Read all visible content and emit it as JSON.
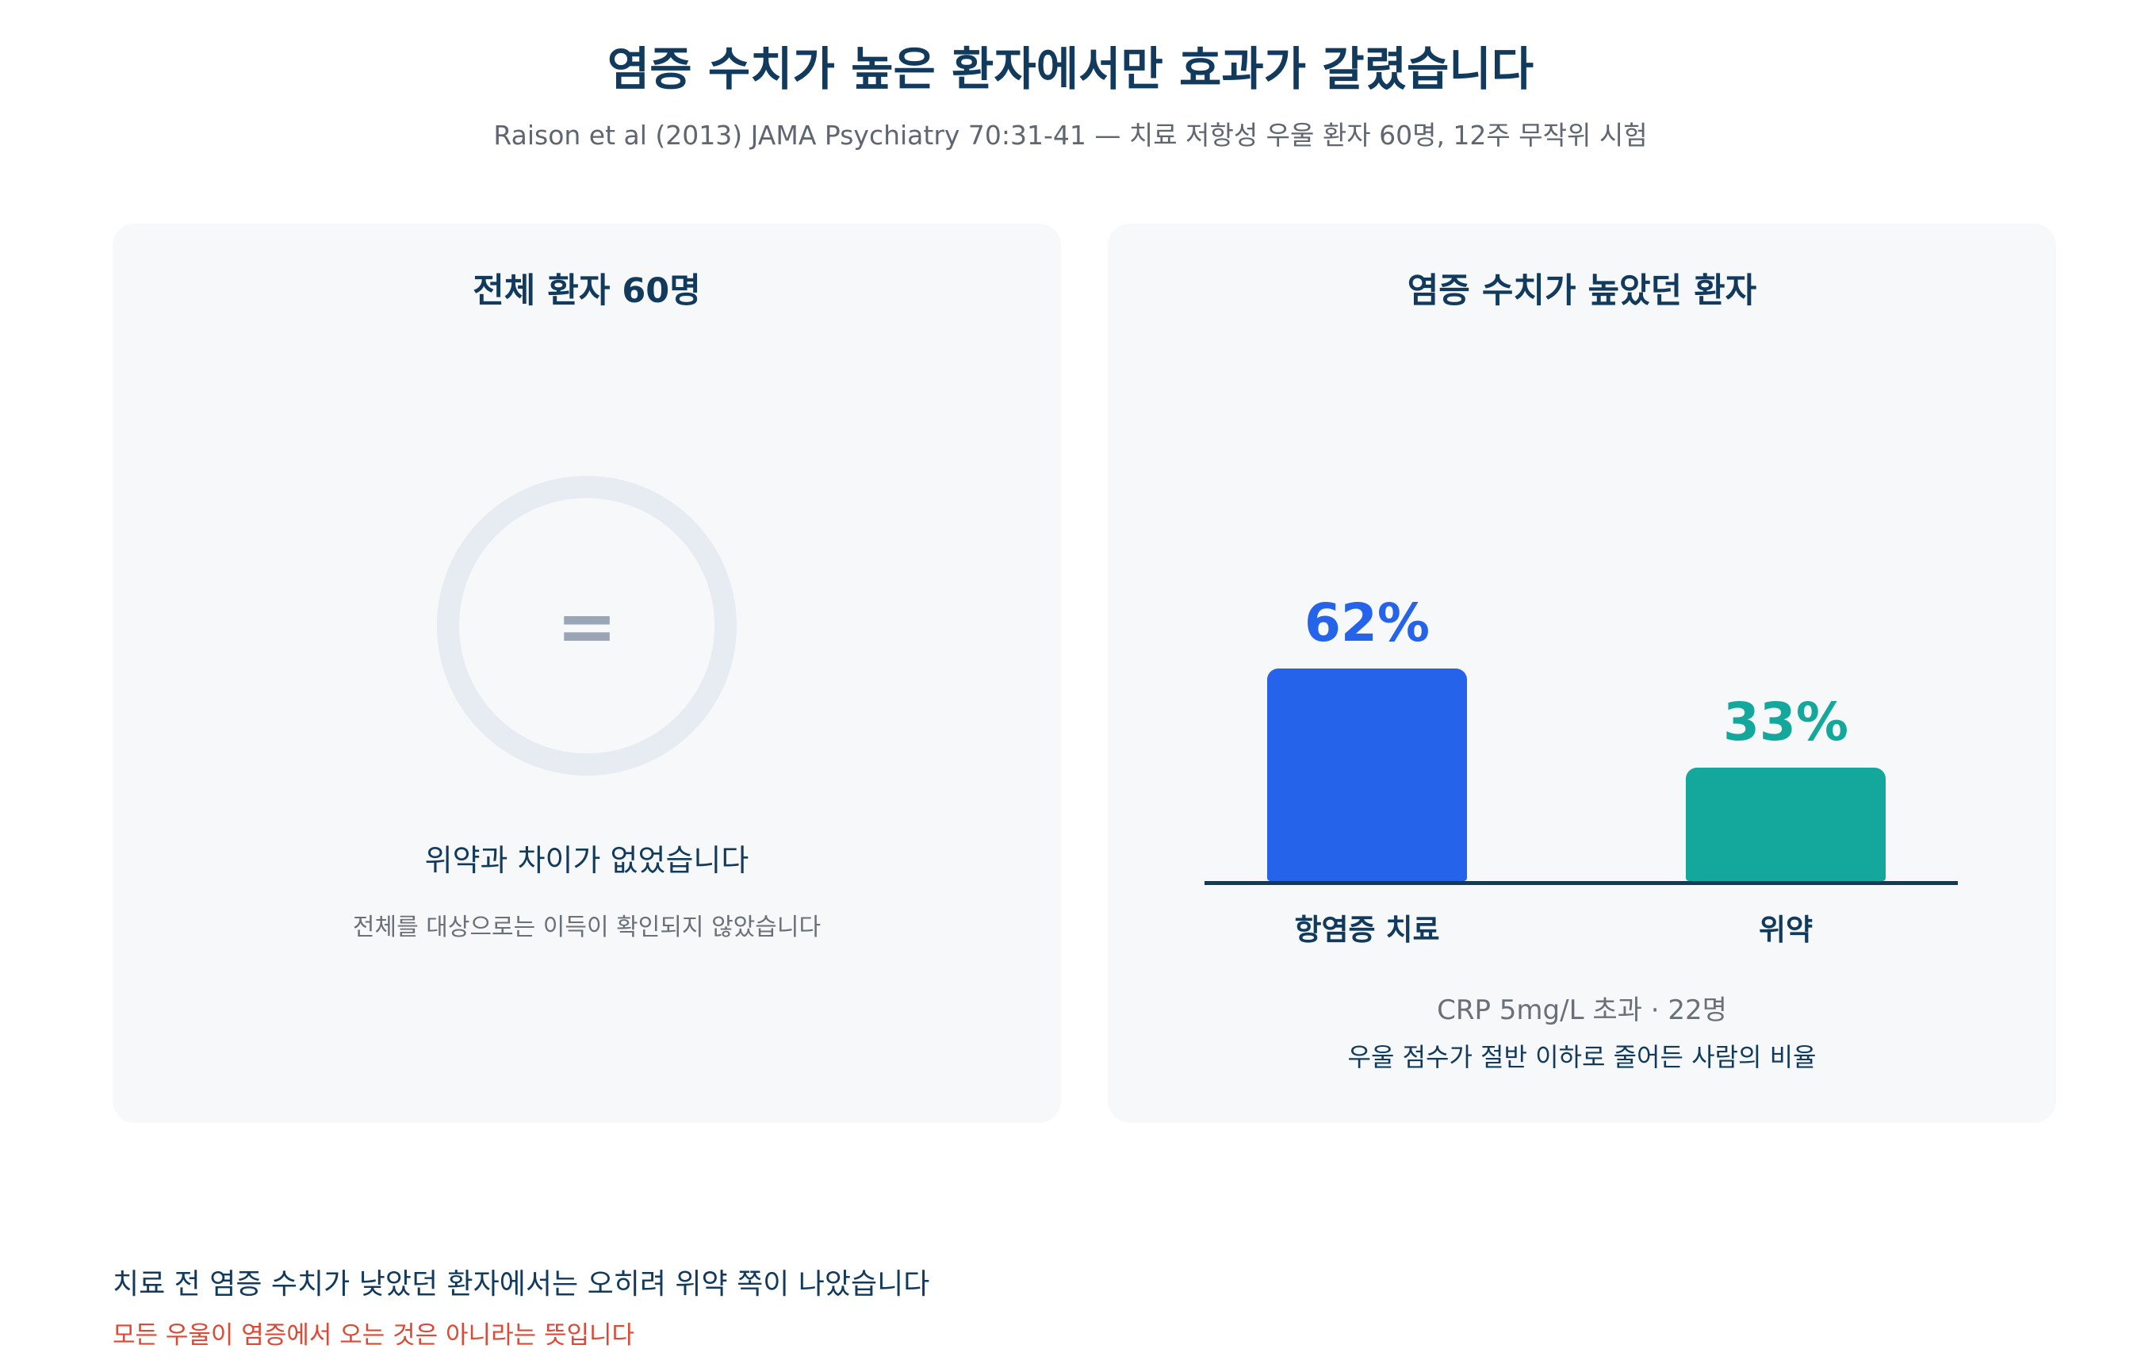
{
  "header": {
    "title": "염증 수치가 높은 환자에서만 효과가 갈렸습니다",
    "subtitle": "Raison et al (2013) JAMA Psychiatry 70:31-41 — 치료 저항성 우울 환자 60명, 12주 무작위 시험"
  },
  "left_panel": {
    "title": "전체 환자 60명",
    "symbol": "=",
    "headline": "위약과 차이가 없었습니다",
    "subtext": "전체를 대상으로는 이득이 확인되지 않았습니다"
  },
  "right_panel": {
    "title": "염증 수치가 높았던 환자",
    "caption": "CRP 5mg/L 초과 · 22명",
    "note": "우울 점수가 절반 이하로 줄어든 사람의 비율"
  },
  "chart_data": {
    "type": "bar",
    "categories": [
      "항염증 치료",
      "위약"
    ],
    "values": [
      62,
      33
    ],
    "value_labels": [
      "62%",
      "33%"
    ],
    "colors": [
      "#2563eb",
      "#14a89c"
    ],
    "ylim": [
      0,
      100
    ]
  },
  "footer": {
    "line1": "치료 전 염증 수치가 낮았던 환자에서는 오히려 위약 쪽이 나았습니다",
    "line2": "모든 우울이 염증에서 오는 것은 아니라는 뜻입니다"
  }
}
